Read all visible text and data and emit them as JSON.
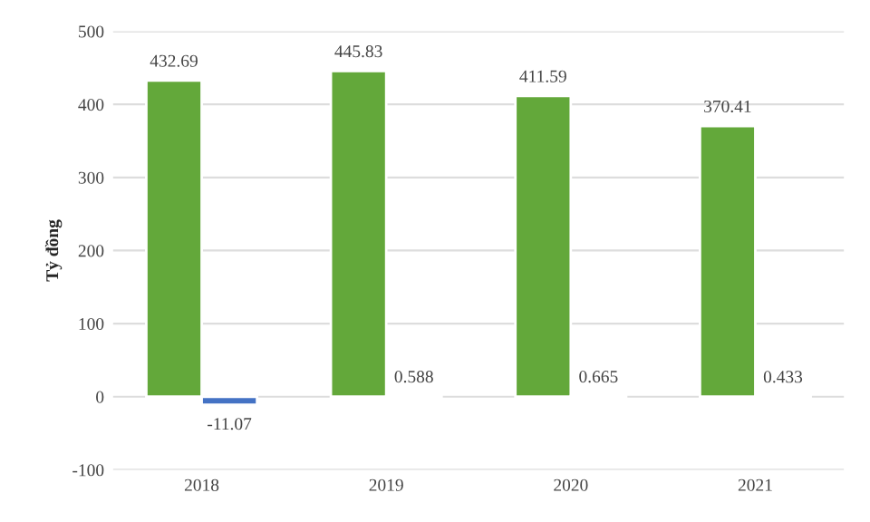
{
  "chart_data": {
    "type": "bar",
    "ylabel": "Tỷ đồng",
    "categories": [
      "2018",
      "2019",
      "2020",
      "2021"
    ],
    "series": [
      {
        "color": "#63a83a",
        "values": [
          432.69,
          445.83,
          411.59,
          370.41
        ]
      },
      {
        "color": "#4472c4",
        "values": [
          -11.07,
          0.588,
          0.665,
          0.433
        ]
      }
    ],
    "ylim": [
      -100,
      500
    ],
    "yticks": [
      -100,
      0,
      100,
      200,
      300,
      400,
      500
    ],
    "grid": "y",
    "data_labels": true
  }
}
